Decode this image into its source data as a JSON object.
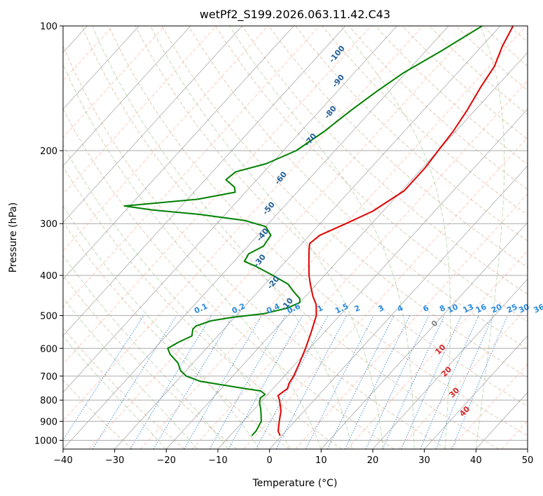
{
  "chart_data": {
    "type": "line",
    "title": "wetPf2_S199.2026.063.11.42.C43",
    "xlabel": "Temperature (°C)",
    "ylabel": "Pressure (hPa)",
    "xlim": [
      -40,
      50
    ],
    "ylim": [
      1050,
      100
    ],
    "y_scale": "log",
    "skew": "skew-T log-p",
    "grid": true,
    "x_ticks": [
      -40,
      -30,
      -20,
      -10,
      0,
      10,
      20,
      30,
      40,
      50
    ],
    "y_ticks": [
      100,
      200,
      300,
      400,
      500,
      600,
      700,
      800,
      900,
      1000
    ],
    "x_tick_labels": [
      "−40",
      "−30",
      "−20",
      "−10",
      "0",
      "10",
      "20",
      "30",
      "40",
      "50"
    ],
    "y_tick_labels": [
      "100",
      "200",
      "300",
      "400",
      "500",
      "600",
      "700",
      "800",
      "900",
      "1000"
    ],
    "colors": {
      "temperature": "#e00000",
      "dewpoint": "#008000",
      "dry_adiabat": "#c8a07a",
      "moist_adiabat": "#6aa84f",
      "mixing_ratio": "#2a7fd4",
      "isotherm": "#888888",
      "dashed_isotherm": "#ff8c69"
    },
    "series": [
      {
        "key": "temperature",
        "points": [
          {
            "p": 975,
            "t": -0.3
          },
          {
            "p": 950,
            "t": -1.5
          },
          {
            "p": 900,
            "t": -3.0
          },
          {
            "p": 850,
            "t": -4.5
          },
          {
            "p": 820,
            "t": -5.8
          },
          {
            "p": 800,
            "t": -6.7
          },
          {
            "p": 780,
            "t": -7.8
          },
          {
            "p": 770,
            "t": -7.6
          },
          {
            "p": 750,
            "t": -7.2
          },
          {
            "p": 730,
            "t": -7.8
          },
          {
            "p": 700,
            "t": -8.2
          },
          {
            "p": 650,
            "t": -9.4
          },
          {
            "p": 600,
            "t": -10.8
          },
          {
            "p": 550,
            "t": -12.5
          },
          {
            "p": 500,
            "t": -14.5
          },
          {
            "p": 470,
            "t": -16.5
          },
          {
            "p": 450,
            "t": -18.5
          },
          {
            "p": 420,
            "t": -21.2
          },
          {
            "p": 400,
            "t": -23.0
          },
          {
            "p": 370,
            "t": -25.5
          },
          {
            "p": 345,
            "t": -27.7
          },
          {
            "p": 335,
            "t": -28.5
          },
          {
            "p": 320,
            "t": -28.0
          },
          {
            "p": 300,
            "t": -25.0
          },
          {
            "p": 280,
            "t": -22.0
          },
          {
            "p": 250,
            "t": -19.5
          },
          {
            "p": 220,
            "t": -19.5
          },
          {
            "p": 200,
            "t": -20.0
          },
          {
            "p": 180,
            "t": -20.5
          },
          {
            "p": 160,
            "t": -21.5
          },
          {
            "p": 140,
            "t": -23.0
          },
          {
            "p": 125,
            "t": -24.0
          },
          {
            "p": 112,
            "t": -26.0
          },
          {
            "p": 100,
            "t": -27.5
          }
        ]
      },
      {
        "key": "dewpoint",
        "points": [
          {
            "p": 975,
            "t": -5.8
          },
          {
            "p": 950,
            "t": -5.8
          },
          {
            "p": 900,
            "t": -6.5
          },
          {
            "p": 870,
            "t": -7.6
          },
          {
            "p": 840,
            "t": -8.8
          },
          {
            "p": 810,
            "t": -10.2
          },
          {
            "p": 790,
            "t": -10.8
          },
          {
            "p": 775,
            "t": -10.5
          },
          {
            "p": 760,
            "t": -12.0
          },
          {
            "p": 750,
            "t": -15.5
          },
          {
            "p": 735,
            "t": -20.5
          },
          {
            "p": 720,
            "t": -25.5
          },
          {
            "p": 700,
            "t": -29.0
          },
          {
            "p": 680,
            "t": -31.0
          },
          {
            "p": 650,
            "t": -33.0
          },
          {
            "p": 620,
            "t": -36.0
          },
          {
            "p": 600,
            "t": -37.5
          },
          {
            "p": 580,
            "t": -36.5
          },
          {
            "p": 560,
            "t": -35.0
          },
          {
            "p": 540,
            "t": -36.0
          },
          {
            "p": 530,
            "t": -36.0
          },
          {
            "p": 515,
            "t": -34.0
          },
          {
            "p": 505,
            "t": -30.5
          },
          {
            "p": 495,
            "t": -25.0
          },
          {
            "p": 480,
            "t": -21.5
          },
          {
            "p": 465,
            "t": -20.0
          },
          {
            "p": 455,
            "t": -20.7
          },
          {
            "p": 440,
            "t": -22.8
          },
          {
            "p": 420,
            "t": -25.5
          },
          {
            "p": 400,
            "t": -30.0
          },
          {
            "p": 380,
            "t": -35.0
          },
          {
            "p": 370,
            "t": -38.0
          },
          {
            "p": 355,
            "t": -38.5
          },
          {
            "p": 340,
            "t": -37.0
          },
          {
            "p": 320,
            "t": -37.5
          },
          {
            "p": 305,
            "t": -40.0
          },
          {
            "p": 295,
            "t": -45.0
          },
          {
            "p": 285,
            "t": -55.0
          },
          {
            "p": 278,
            "t": -65.0
          },
          {
            "p": 272,
            "t": -71.0
          },
          {
            "p": 262,
            "t": -58.0
          },
          {
            "p": 252,
            "t": -52.0
          },
          {
            "p": 245,
            "t": -53.0
          },
          {
            "p": 235,
            "t": -56.0
          },
          {
            "p": 225,
            "t": -55.5
          },
          {
            "p": 215,
            "t": -51.0
          },
          {
            "p": 200,
            "t": -47.5
          },
          {
            "p": 180,
            "t": -45.5
          },
          {
            "p": 160,
            "t": -44.0
          },
          {
            "p": 145,
            "t": -42.5
          },
          {
            "p": 130,
            "t": -40.5
          },
          {
            "p": 115,
            "t": -37.0
          },
          {
            "p": 100,
            "t": -33.5
          }
        ]
      }
    ],
    "annotations": {
      "dry_adiabats_upper": [
        {
          "text": "-100",
          "p": 118,
          "t": -56
        },
        {
          "text": "-90",
          "p": 137,
          "t": -51
        },
        {
          "text": "-80",
          "p": 163,
          "t": -47
        },
        {
          "text": "-70",
          "p": 190,
          "t": -46
        },
        {
          "text": "-60",
          "p": 235,
          "t": -45
        },
        {
          "text": "-50",
          "p": 278,
          "t": -42
        },
        {
          "text": "-40",
          "p": 322,
          "t": -38.5
        },
        {
          "text": "-30",
          "p": 372,
          "t": -34.5
        },
        {
          "text": "-20",
          "p": 420,
          "t": -28
        },
        {
          "text": "-10",
          "p": 474,
          "t": -21.5
        }
      ],
      "mixing_ratios": [
        {
          "text": "0.1",
          "p": 487,
          "t": -37.5
        },
        {
          "text": "0.2",
          "p": 487,
          "t": -30.2
        },
        {
          "text": "0.4",
          "p": 487,
          "t": -23.5
        },
        {
          "text": "0.6",
          "p": 487,
          "t": -19.5
        },
        {
          "text": "1",
          "p": 487,
          "t": -14.4
        },
        {
          "text": "1.5",
          "p": 487,
          "t": -10.2
        },
        {
          "text": "2",
          "p": 487,
          "t": -7.2
        },
        {
          "text": "3",
          "p": 487,
          "t": -2.6
        },
        {
          "text": "4",
          "p": 487,
          "t": 1.1
        },
        {
          "text": "6",
          "p": 487,
          "t": 6.1
        },
        {
          "text": "8",
          "p": 487,
          "t": 9.3
        },
        {
          "text": "10",
          "p": 487,
          "t": 11.3
        },
        {
          "text": "13",
          "p": 487,
          "t": 14.3
        },
        {
          "text": "16",
          "p": 487,
          "t": 16.8
        },
        {
          "text": "20",
          "p": 487,
          "t": 19.8
        },
        {
          "text": "25",
          "p": 487,
          "t": 22.8
        },
        {
          "text": "30",
          "p": 487,
          "t": 25.1
        },
        {
          "text": "36",
          "p": 487,
          "t": 28.0
        }
      ],
      "isotherm_labels": [
        {
          "text": "0",
          "p": 528,
          "t": 10.5,
          "color": "#888888"
        },
        {
          "text": "10",
          "p": 610,
          "t": 16.2,
          "color": "#d62728"
        },
        {
          "text": "20",
          "p": 690,
          "t": 21.3,
          "color": "#d62728"
        },
        {
          "text": "30",
          "p": 775,
          "t": 26.5,
          "color": "#d62728"
        },
        {
          "text": "40",
          "p": 860,
          "t": 31.8,
          "color": "#d62728"
        }
      ]
    }
  }
}
